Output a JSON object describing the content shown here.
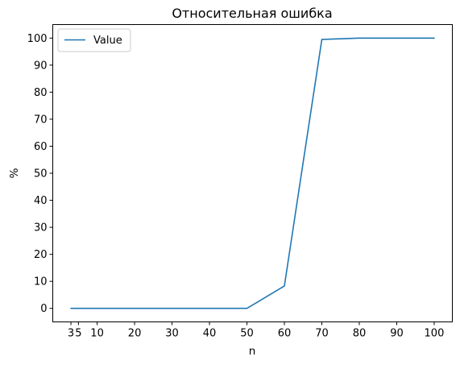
{
  "chart_data": {
    "type": "line",
    "title": "Относительная ошибка",
    "xlabel": "n",
    "ylabel": "%",
    "x": [
      3,
      5,
      10,
      20,
      30,
      40,
      50,
      60,
      70,
      80,
      90,
      100
    ],
    "series": [
      {
        "name": "Value",
        "color": "#1f77b4",
        "values": [
          0,
          0,
          0,
          0,
          0,
          0,
          0,
          8.3,
          99.5,
          100,
          100,
          100
        ]
      }
    ],
    "xticks": [
      3,
      5,
      10,
      20,
      30,
      40,
      50,
      60,
      70,
      80,
      90,
      100
    ],
    "xtick_labels": [
      "3",
      "5",
      "10",
      "20",
      "30",
      "40",
      "50",
      "60",
      "70",
      "80",
      "90",
      "100"
    ],
    "yticks": [
      0,
      10,
      20,
      30,
      40,
      50,
      60,
      70,
      80,
      90,
      100
    ],
    "xlim": [
      -1.85,
      104.85
    ],
    "ylim": [
      -5,
      105
    ],
    "grid": false,
    "legend_position": "top-left"
  }
}
